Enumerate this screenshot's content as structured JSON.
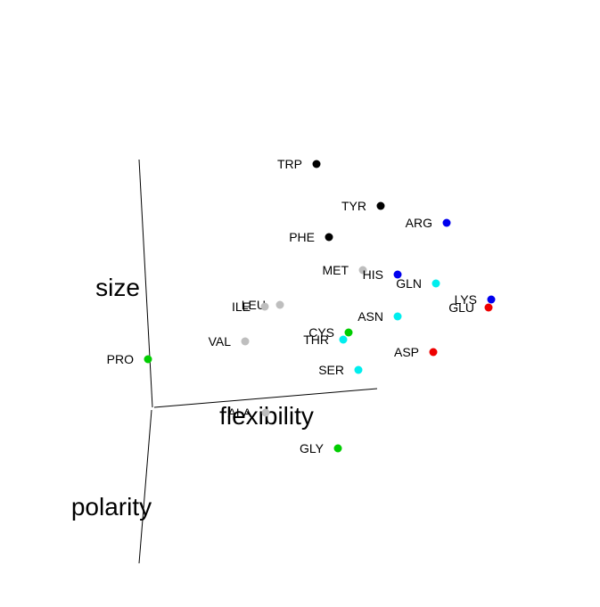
{
  "chart_data": {
    "type": "scatter",
    "projection": "3d",
    "title": "",
    "axes": {
      "polarity": "polarity",
      "size": "size",
      "flexibility": "flexibility"
    },
    "legend": "none",
    "grid": false,
    "points": [
      {
        "label": "TRP",
        "color": "#000000"
      },
      {
        "label": "TYR",
        "color": "#000000"
      },
      {
        "label": "PHE",
        "color": "#000000"
      },
      {
        "label": "ARG",
        "color": "#0000ee"
      },
      {
        "label": "MET",
        "color": "#bebebe"
      },
      {
        "label": "HIS",
        "color": "#0000ee"
      },
      {
        "label": "GLN",
        "color": "#00eeee"
      },
      {
        "label": "LYS",
        "color": "#0000ee"
      },
      {
        "label": "GLU",
        "color": "#ee0000"
      },
      {
        "label": "LEU",
        "color": "#bebebe"
      },
      {
        "label": "ILE",
        "color": "#bebebe"
      },
      {
        "label": "ASN",
        "color": "#00eeee"
      },
      {
        "label": "CYS",
        "color": "#00cd00"
      },
      {
        "label": "THR",
        "color": "#00eeee"
      },
      {
        "label": "VAL",
        "color": "#bebebe"
      },
      {
        "label": "ASP",
        "color": "#ee0000"
      },
      {
        "label": "PRO",
        "color": "#00cd00"
      },
      {
        "label": "SER",
        "color": "#00eeee"
      },
      {
        "label": "ALA",
        "color": "#bebebe"
      },
      {
        "label": "GLY",
        "color": "#00cd00"
      }
    ]
  }
}
